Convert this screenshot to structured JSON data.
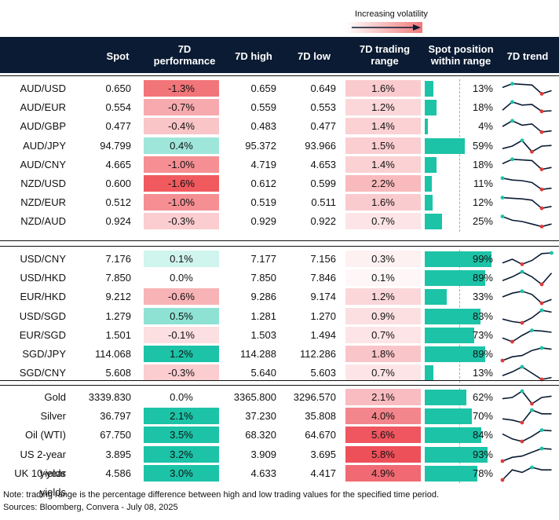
{
  "legend": {
    "label": "Increasing volatility"
  },
  "columns": {
    "spot": "Spot",
    "perf_l1": "7D",
    "perf_l2": "performance",
    "high": "7D high",
    "low": "7D low",
    "range_l1": "7D trading",
    "range_l2": "range",
    "pos_l1": "Spot position",
    "pos_l2": "within range",
    "trend": "7D trend"
  },
  "colors": {
    "header": "#0a1b33",
    "bar": "#1cc3a7"
  },
  "groups": [
    {
      "rows": [
        {
          "name": "AUD/USD",
          "spot": "0.650",
          "perf": "-1.3%",
          "high": "0.659",
          "low": "0.649",
          "range": "1.6%",
          "pos_pct": "13%",
          "pos": 13,
          "trend": [
            0.6,
            0.9,
            0.85,
            0.8,
            0.1,
            0.35
          ]
        },
        {
          "name": "AUD/EUR",
          "spot": "0.554",
          "perf": "-0.7%",
          "high": "0.559",
          "low": "0.553",
          "range": "1.2%",
          "pos_pct": "18%",
          "pos": 18,
          "trend": [
            0.3,
            0.95,
            0.7,
            0.75,
            0.2,
            0.25
          ]
        },
        {
          "name": "AUD/GBP",
          "spot": "0.477",
          "perf": "-0.4%",
          "high": "0.483",
          "low": "0.477",
          "range": "1.4%",
          "pos_pct": "4%",
          "pos": 4,
          "trend": [
            0.5,
            0.95,
            0.6,
            0.7,
            0.05,
            0.15
          ]
        },
        {
          "name": "AUD/JPY",
          "spot": "94.799",
          "perf": "0.4%",
          "high": "95.372",
          "low": "93.966",
          "range": "1.5%",
          "pos_pct": "59%",
          "pos": 59,
          "trend": [
            0.3,
            0.5,
            0.95,
            0.05,
            0.5,
            0.55
          ]
        },
        {
          "name": "AUD/CNY",
          "spot": "4.665",
          "perf": "-1.0%",
          "high": "4.719",
          "low": "4.653",
          "range": "1.4%",
          "pos_pct": "18%",
          "pos": 18,
          "trend": [
            0.6,
            0.95,
            0.9,
            0.85,
            0.15,
            0.3
          ]
        },
        {
          "name": "NZD/USD",
          "spot": "0.600",
          "perf": "-1.6%",
          "high": "0.612",
          "low": "0.599",
          "range": "2.2%",
          "pos_pct": "11%",
          "pos": 11,
          "trend": [
            0.95,
            0.8,
            0.75,
            0.6,
            0.05,
            0.15
          ]
        },
        {
          "name": "NZD/EUR",
          "spot": "0.512",
          "perf": "-1.0%",
          "high": "0.519",
          "low": "0.511",
          "range": "1.6%",
          "pos_pct": "12%",
          "pos": 12,
          "trend": [
            0.9,
            0.85,
            0.8,
            0.7,
            0.05,
            0.2
          ]
        },
        {
          "name": "NZD/AUD",
          "spot": "0.924",
          "perf": "-0.3%",
          "high": "0.929",
          "low": "0.922",
          "range": "0.7%",
          "pos_pct": "25%",
          "pos": 25,
          "trend": [
            0.9,
            0.6,
            0.5,
            0.3,
            0.1,
            0.3
          ]
        }
      ]
    },
    {
      "rows": [
        {
          "name": "USD/CNY",
          "spot": "7.176",
          "perf": "0.1%",
          "high": "7.177",
          "low": "7.156",
          "range": "0.3%",
          "pos_pct": "99%",
          "pos": 99,
          "trend": [
            0.2,
            0.5,
            0.1,
            0.4,
            0.95,
            1.0
          ]
        },
        {
          "name": "USD/HKD",
          "spot": "7.850",
          "perf": "0.0%",
          "high": "7.850",
          "low": "7.846",
          "range": "0.1%",
          "pos_pct": "89%",
          "pos": 89,
          "trend": [
            0.3,
            0.6,
            1.0,
            0.6,
            0.0,
            0.9
          ]
        },
        {
          "name": "EUR/HKD",
          "spot": "9.212",
          "perf": "-0.6%",
          "high": "9.286",
          "low": "9.174",
          "range": "1.2%",
          "pos_pct": "33%",
          "pos": 33,
          "trend": [
            0.5,
            0.8,
            0.95,
            0.7,
            0.0,
            0.3
          ]
        },
        {
          "name": "USD/SGD",
          "spot": "1.279",
          "perf": "0.5%",
          "high": "1.281",
          "low": "1.270",
          "range": "0.9%",
          "pos_pct": "83%",
          "pos": 83,
          "trend": [
            0.3,
            0.1,
            0.0,
            0.4,
            1.0,
            0.85
          ]
        },
        {
          "name": "EUR/SGD",
          "spot": "1.501",
          "perf": "-0.1%",
          "high": "1.503",
          "low": "1.494",
          "range": "0.7%",
          "pos_pct": "73%",
          "pos": 73,
          "trend": [
            0.3,
            0.0,
            0.5,
            0.9,
            0.85,
            0.75
          ]
        },
        {
          "name": "SGD/JPY",
          "spot": "114.068",
          "perf": "1.2%",
          "high": "114.288",
          "low": "112.286",
          "range": "1.8%",
          "pos_pct": "89%",
          "pos": 89,
          "trend": [
            0.0,
            0.3,
            0.4,
            0.8,
            1.0,
            0.9
          ]
        },
        {
          "name": "SGD/CNY",
          "spot": "5.608",
          "perf": "-0.3%",
          "high": "5.640",
          "low": "5.603",
          "range": "0.7%",
          "pos_pct": "13%",
          "pos": 13,
          "trend": [
            0.3,
            0.6,
            1.0,
            0.5,
            0.0,
            0.15
          ]
        }
      ]
    },
    {
      "rows": [
        {
          "name": "Gold",
          "spot": "3339.830",
          "perf": "0.0%",
          "high": "3365.800",
          "low": "3296.570",
          "range": "2.1%",
          "pos_pct": "62%",
          "pos": 62,
          "trend": [
            0.4,
            0.5,
            1.0,
            0.0,
            0.5,
            0.6
          ]
        },
        {
          "name": "Silver",
          "spot": "36.797",
          "perf": "2.1%",
          "high": "37.230",
          "low": "35.808",
          "range": "4.0%",
          "pos_pct": "70%",
          "pos": 70,
          "trend": [
            0.3,
            0.2,
            0.0,
            1.0,
            0.7,
            0.7
          ]
        },
        {
          "name": "Oil (WTI)",
          "spot": "67.750",
          "perf": "3.5%",
          "high": "68.320",
          "low": "64.670",
          "range": "5.6%",
          "pos_pct": "84%",
          "pos": 84,
          "trend": [
            0.6,
            0.2,
            0.0,
            0.4,
            0.9,
            0.85
          ]
        },
        {
          "name": "US 2-year yields",
          "spot": "3.895",
          "perf": "3.2%",
          "high": "3.909",
          "low": "3.695",
          "range": "5.8%",
          "pos_pct": "93%",
          "pos": 93,
          "trend": [
            0.0,
            0.3,
            0.4,
            0.7,
            1.0,
            0.95
          ]
        },
        {
          "name": "UK 10-year yields",
          "spot": "4.586",
          "perf": "3.0%",
          "high": "4.633",
          "low": "4.417",
          "range": "4.9%",
          "pos_pct": "78%",
          "pos": 78,
          "trend": [
            0.0,
            0.8,
            0.6,
            1.0,
            0.8,
            0.8
          ]
        }
      ]
    }
  ],
  "footnotes": {
    "note": "Note: trading range is the percentage difference between high and low trading values for the specified time period.",
    "sources": "Sources: Bloomberg, Convera - July 08, 2025"
  }
}
